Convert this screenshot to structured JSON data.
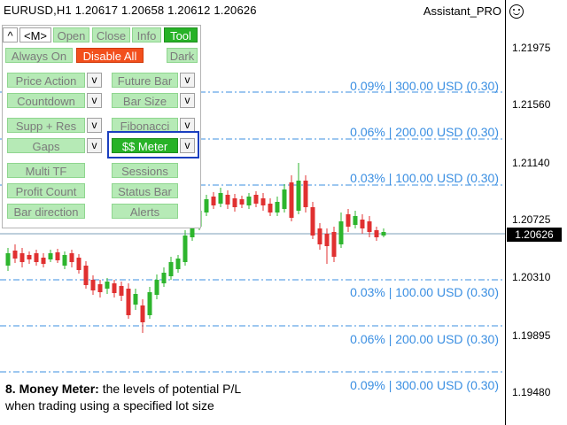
{
  "chart": {
    "symbol": "EURUSD,H1",
    "ohlc": "1.20617 1.20658 1.20612 1.20626",
    "header_text": "EURUSD,H1  1.20617 1.20658 1.20612 1.20626",
    "assistant_label": "Assistant_PRO",
    "current_price": "1.20626",
    "price_labels": [
      "1.21975",
      "1.21560",
      "1.21140",
      "1.20725",
      "1.20310",
      "1.19895",
      "1.19480"
    ],
    "colors": {
      "up": "#2db52d",
      "down": "#e03030",
      "level": "#3b8fe2"
    }
  },
  "levels": [
    {
      "text": "0.09% | 300.00 USD (0.30)"
    },
    {
      "text": "0.06% | 200.00 USD (0.30)"
    },
    {
      "text": "0.03% | 100.00 USD (0.30)"
    },
    {
      "text": "0.03% | 100.00 USD (0.30)"
    },
    {
      "text": "0.06% | 200.00 USD (0.30)"
    },
    {
      "text": "0.09% | 300.00 USD (0.30)"
    }
  ],
  "panel": {
    "top_buttons": {
      "caret": "^",
      "m": "<M>",
      "open": "Open",
      "close": "Close",
      "info": "Info",
      "tool": "Tool"
    },
    "always_on": "Always On",
    "disable_all": "Disable All",
    "dark": "Dark",
    "price_action": "Price Action",
    "future_bar": "Future Bar",
    "countdown": "Countdown",
    "bar_size": "Bar Size",
    "supp_res": "Supp + Res",
    "fibonacci": "Fibonacci",
    "gaps": "Gaps",
    "money_meter": "$$ Meter",
    "multi_tf": "Multi TF",
    "sessions": "Sessions",
    "profit_count": "Profit Count",
    "status_bar": "Status Bar",
    "bar_direction": "Bar direction",
    "alerts": "Alerts",
    "v": "v"
  },
  "caption": {
    "bold": "8. Money Meter:",
    "line1": " the levels of potential P/L",
    "line2": "when trading using a specified lot size"
  }
}
